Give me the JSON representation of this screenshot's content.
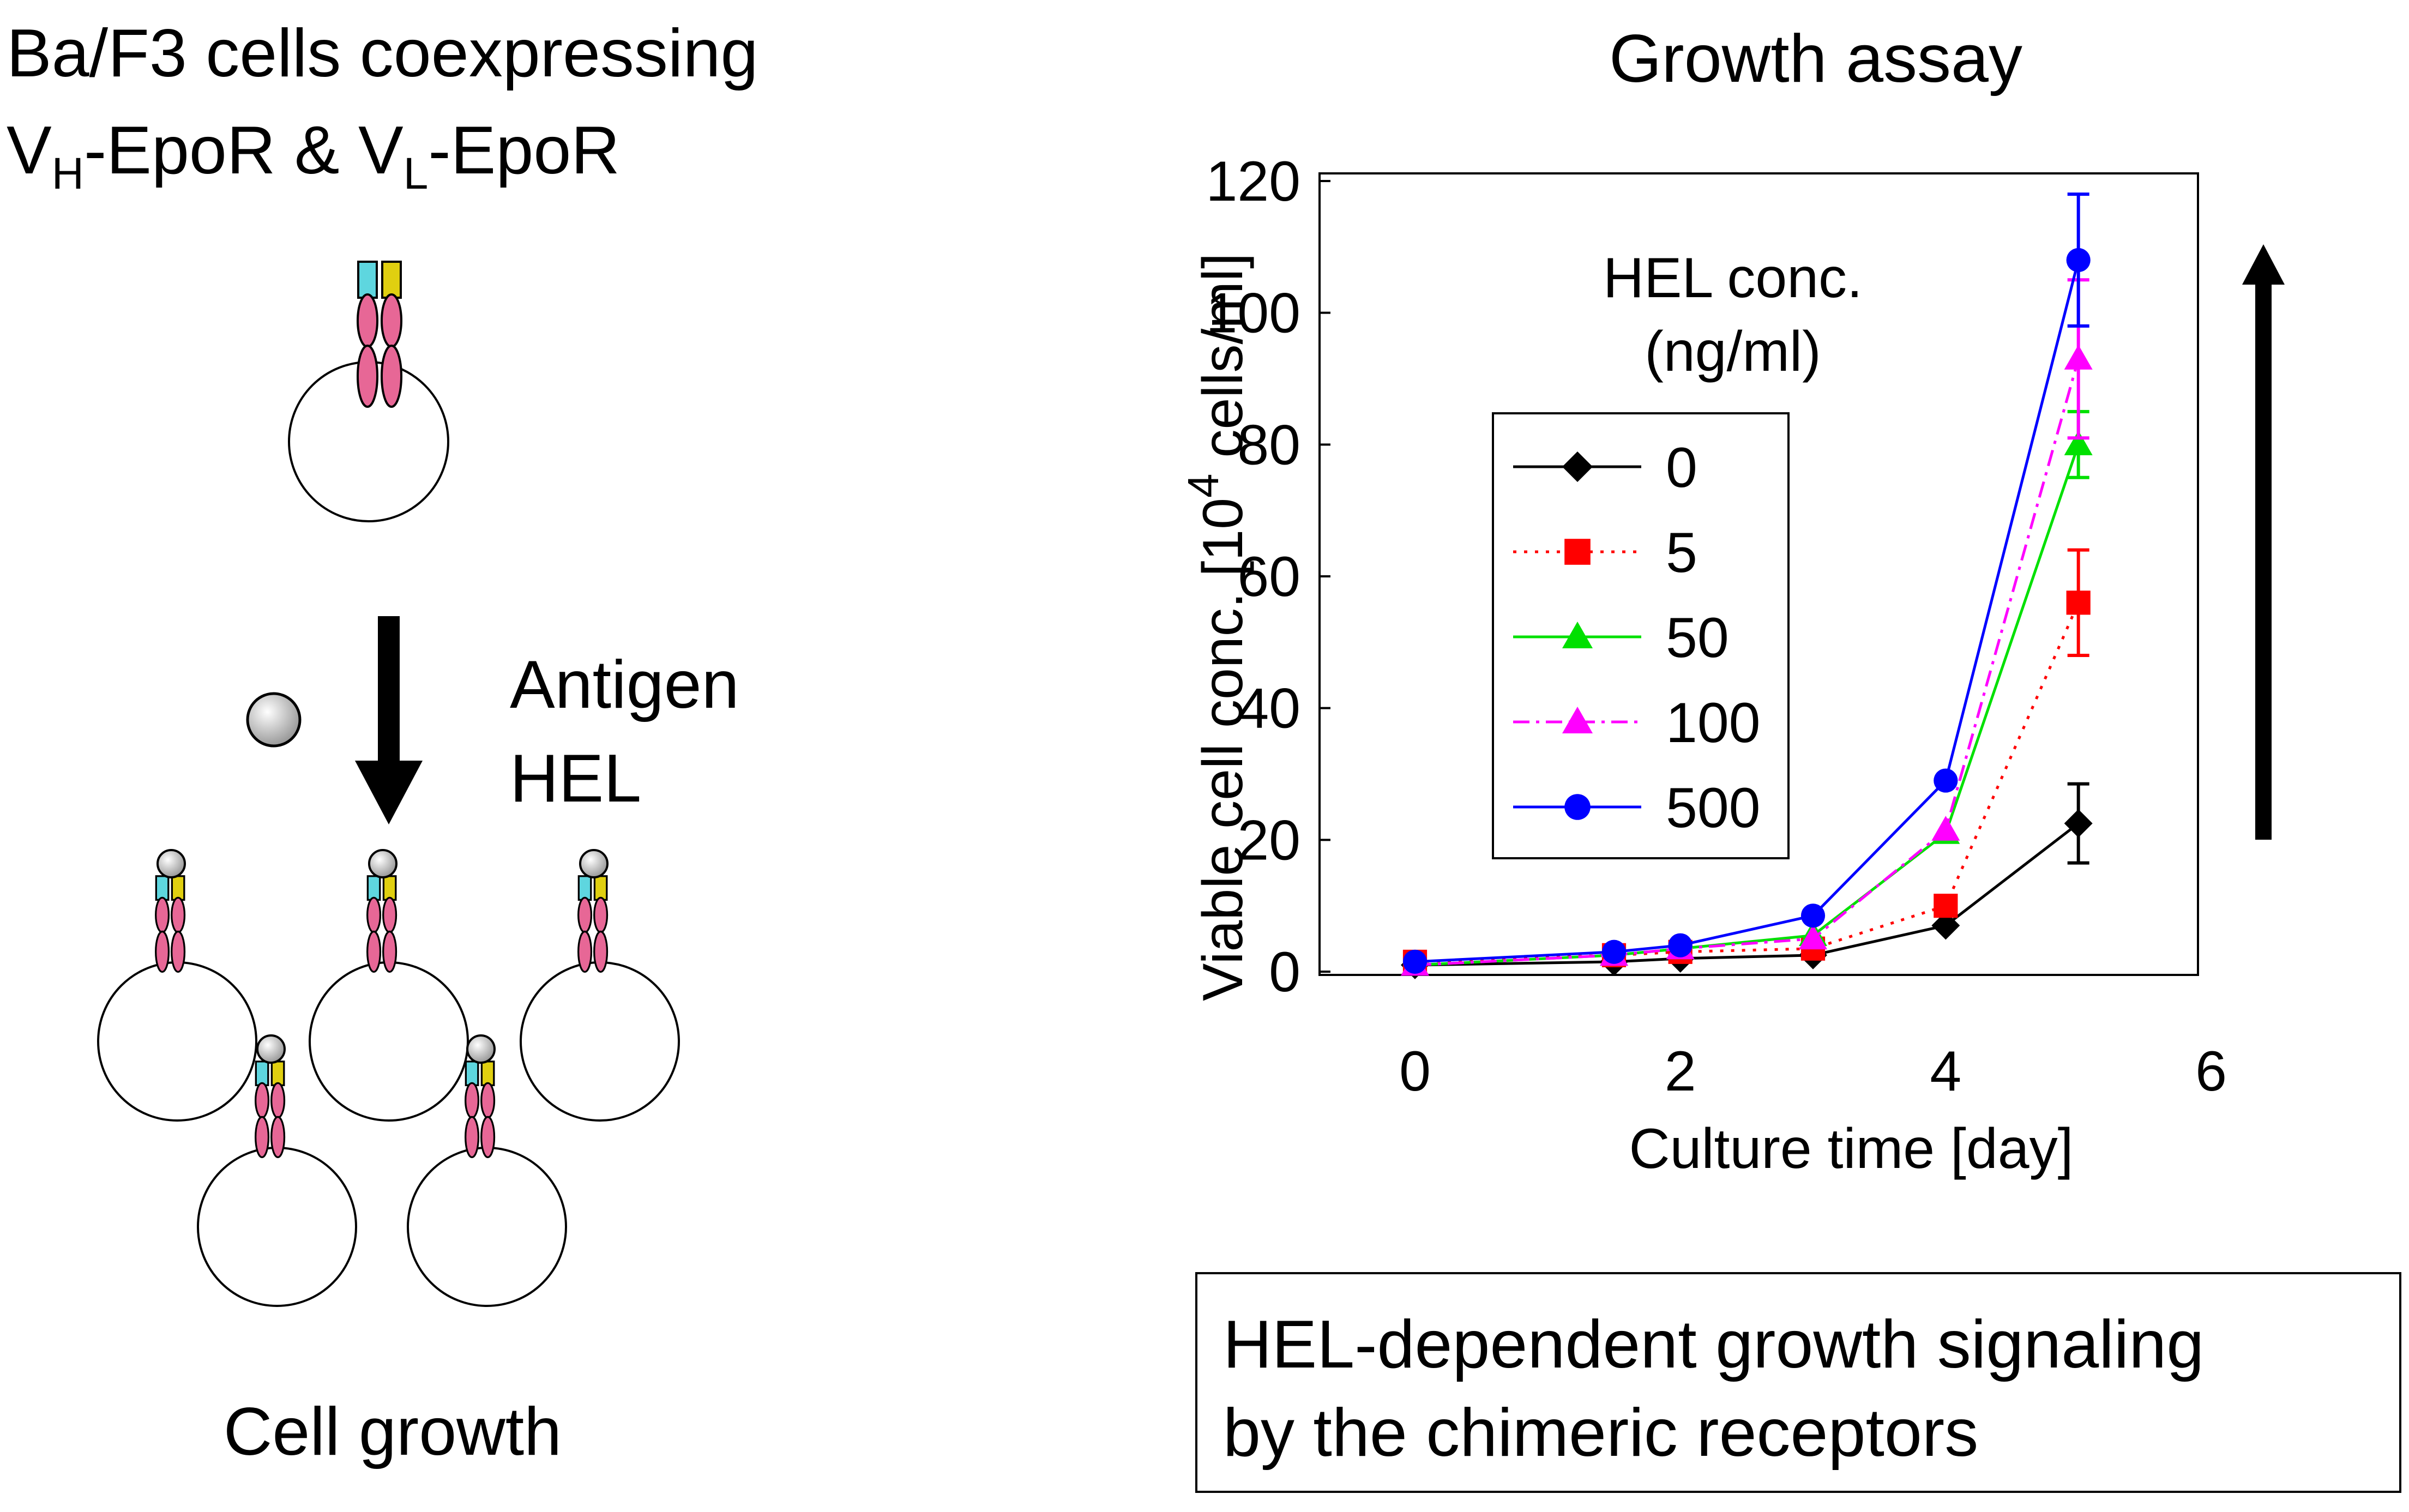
{
  "left_panel": {
    "title_line1": "Ba/F3 cells coexpressing",
    "title_line2": {
      "vh_main": "V",
      "vh_sub": "H",
      "mid": "-EpoR & ",
      "vl_main": "V",
      "vl_sub": "L",
      "end": "-EpoR"
    },
    "antigen_label": "Antigen",
    "hel_label": "HEL",
    "bottom_label": "Cell growth",
    "colors": {
      "vh_domain": "#5ed6df",
      "vl_domain": "#e0cf10",
      "epor_body": "#e76796",
      "antigen_ball": "#d0d0d0"
    }
  },
  "chart_data": {
    "type": "line",
    "title": "Growth assay",
    "xlabel": "Culture time [day]",
    "ylabel": {
      "main": "Viable cell conc.  [10",
      "superscript": "4",
      "end": " cells/ml]"
    },
    "xlim": [
      0,
      6
    ],
    "ylim": [
      0,
      120
    ],
    "x_ticks": [
      "0",
      "2",
      "4",
      "6"
    ],
    "y_ticks": [
      "0",
      "20",
      "40",
      "60",
      "80",
      "100",
      "120"
    ],
    "legend": {
      "title_line1": "HEL conc.",
      "title_line2": "(ng/ml)",
      "placement": "upper-left"
    },
    "grid": false,
    "series": [
      {
        "name": "0",
        "color": "#000000",
        "marker": "diamond",
        "dash": "solid",
        "x": [
          0,
          1.5,
          2,
          3,
          4,
          5
        ],
        "y": [
          1,
          1.5,
          2,
          2.5,
          7,
          22.5
        ],
        "err": [
          0,
          0,
          0,
          0,
          0,
          6
        ]
      },
      {
        "name": "5",
        "color": "#ff0000",
        "marker": "square",
        "dash": "dotted",
        "x": [
          0,
          1.5,
          2,
          3,
          4,
          5
        ],
        "y": [
          1.5,
          2.5,
          3,
          3.5,
          10,
          56
        ],
        "err": [
          0,
          0,
          0,
          0,
          0,
          8
        ]
      },
      {
        "name": "50",
        "color": "#00e000",
        "marker": "triangle",
        "dash": "solid",
        "x": [
          0,
          1.5,
          2,
          3,
          4,
          5
        ],
        "y": [
          1,
          2.5,
          3.5,
          5.5,
          21,
          80
        ],
        "err": [
          0,
          0,
          0,
          0,
          0,
          5
        ]
      },
      {
        "name": "100",
        "color": "#ff00ff",
        "marker": "triangle",
        "dash": "dashdot",
        "x": [
          0,
          1.5,
          2,
          3,
          4,
          5
        ],
        "y": [
          1,
          2.5,
          3.5,
          5,
          21.5,
          93
        ],
        "err": [
          0,
          0,
          0,
          0,
          0,
          12
        ]
      },
      {
        "name": "500",
        "color": "#0000ff",
        "marker": "circle",
        "dash": "solid",
        "x": [
          0,
          1.5,
          2,
          3,
          4,
          5
        ],
        "y": [
          1.5,
          3,
          4,
          8.5,
          29,
          108
        ],
        "err": [
          0,
          0,
          0,
          0,
          0,
          10
        ]
      }
    ]
  },
  "summary_box": {
    "line1": "HEL-dependent growth signaling",
    "line2": "by the chimeric receptors"
  }
}
